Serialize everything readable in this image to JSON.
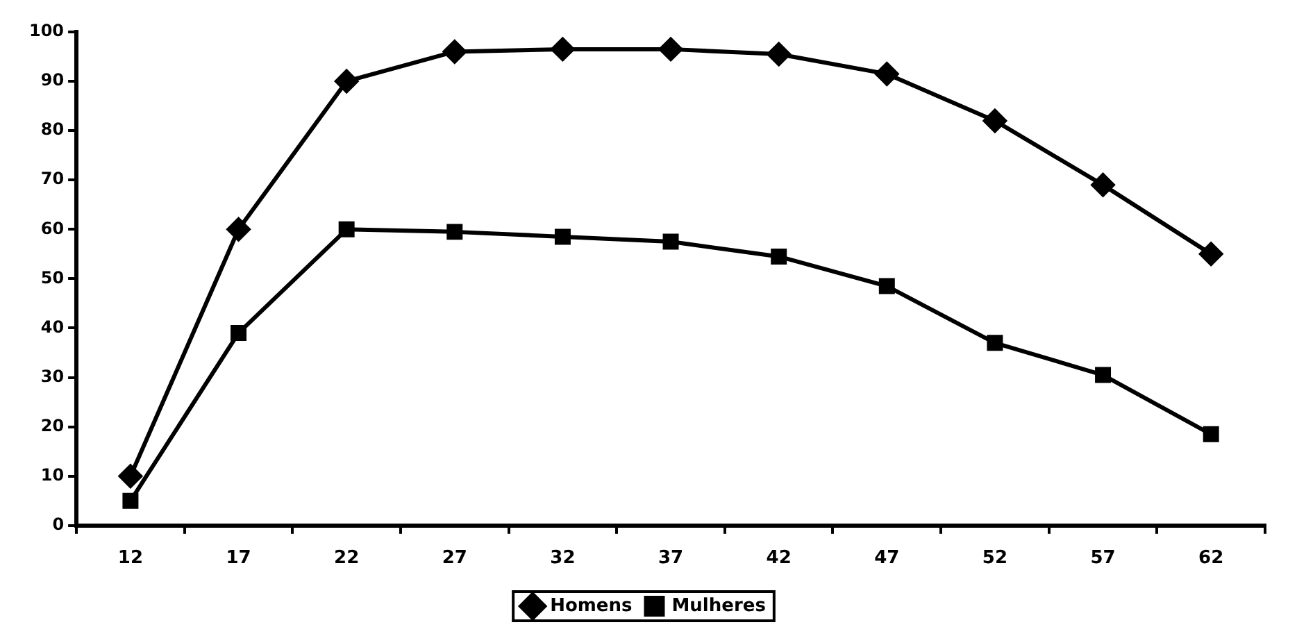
{
  "chart_data": {
    "type": "line",
    "categories": [
      "12",
      "17",
      "22",
      "27",
      "32",
      "37",
      "42",
      "47",
      "52",
      "57",
      "62"
    ],
    "series": [
      {
        "name": "Homens",
        "color": "#000000",
        "marker": "diamond",
        "values": [
          10,
          60,
          90,
          96,
          96.5,
          96.5,
          95.5,
          91.5,
          82,
          69,
          55
        ]
      },
      {
        "name": "Mulheres",
        "color": "#000000",
        "marker": "square",
        "values": [
          5,
          39,
          60,
          59.5,
          58.5,
          57.5,
          54.5,
          48.5,
          37,
          30.5,
          18.5
        ]
      }
    ],
    "ylim": [
      0,
      100
    ],
    "yticks": [
      0,
      10,
      20,
      30,
      40,
      50,
      60,
      70,
      80,
      90,
      100
    ],
    "grid": false,
    "legend": "bottom",
    "line_style": "solid"
  }
}
